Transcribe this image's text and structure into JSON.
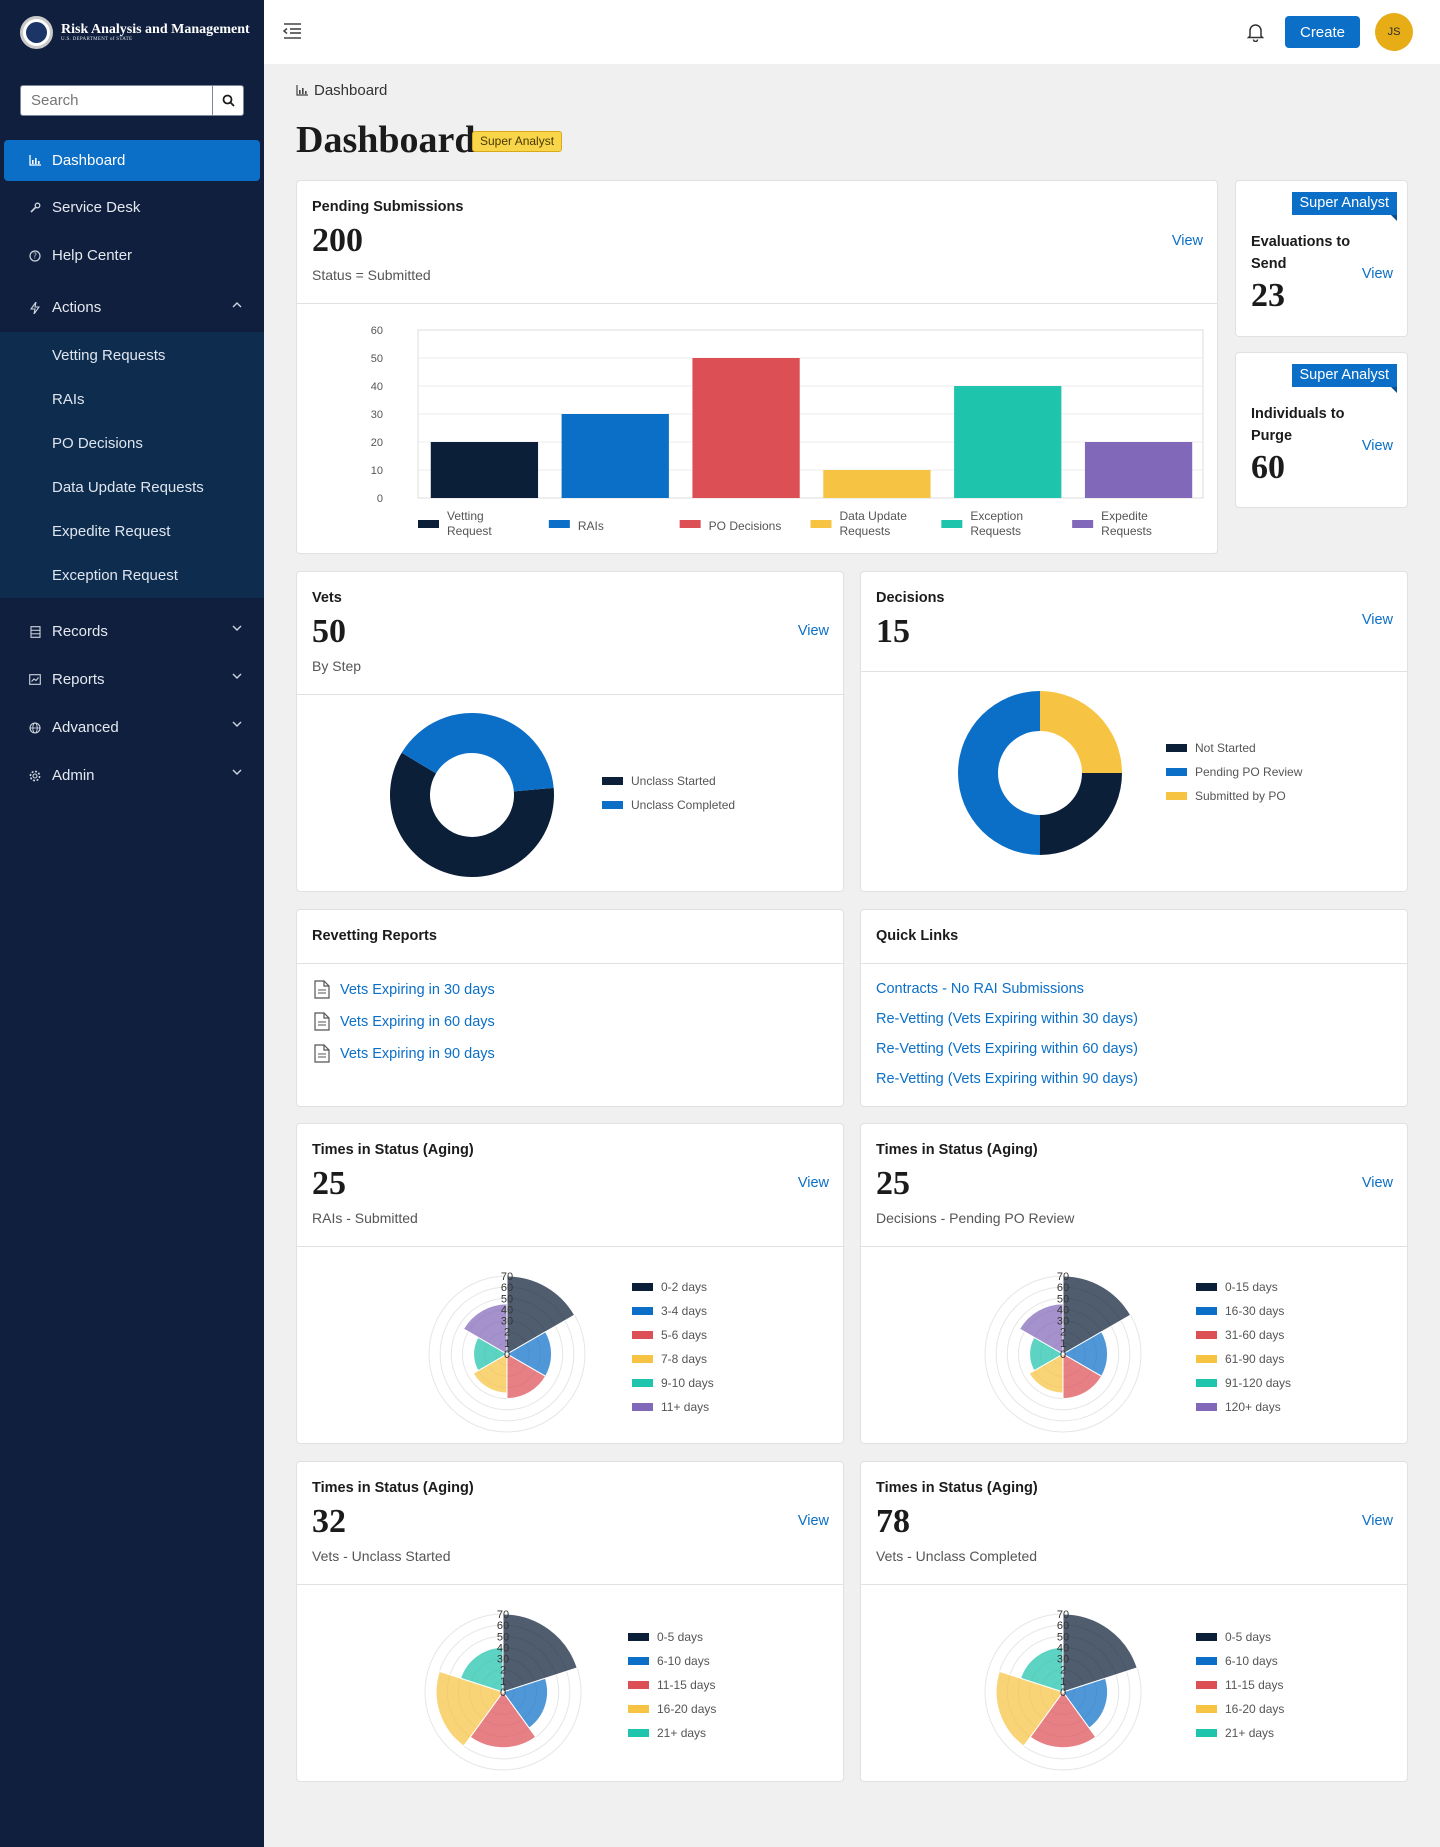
{
  "brand": {
    "title": "Risk Analysis and Management",
    "subtitle": "U.S. DEPARTMENT of STATE"
  },
  "search": {
    "placeholder": "Search"
  },
  "nav": {
    "dashboard": "Dashboard",
    "service_desk": "Service Desk",
    "help_center": "Help Center",
    "actions": "Actions",
    "actions_items": [
      "Vetting Requests",
      "RAIs",
      "PO Decisions",
      "Data Update Requests",
      "Expedite Request",
      "Exception Request"
    ],
    "records": "Records",
    "reports": "Reports",
    "advanced": "Advanced",
    "admin": "Admin"
  },
  "topbar": {
    "create_label": "Create",
    "avatar_initials": "JS"
  },
  "breadcrumb": "Dashboard",
  "page": {
    "title": "Dashboard",
    "badge": "Super Analyst"
  },
  "view_label": "View",
  "pending": {
    "label": "Pending Submissions",
    "value": "200",
    "sub": "Status = Submitted",
    "chart_data": {
      "type": "bar",
      "categories": [
        "Vetting Request",
        "RAIs",
        "PO Decisions",
        "Data Update Requests",
        "Exception Requests",
        "Expedite Requests"
      ],
      "values": [
        20,
        30,
        50,
        10,
        40,
        20
      ],
      "colors": [
        "#0c1f38",
        "#0b6fc7",
        "#dc4f55",
        "#f7c343",
        "#1fc4ac",
        "#8268b8"
      ],
      "ylim": [
        0,
        60
      ],
      "yticks": [
        "60",
        "50",
        "40",
        "30",
        "20",
        "10",
        "0"
      ],
      "grid": true,
      "legend": "bottom"
    }
  },
  "evaluations": {
    "flag": "Super Analyst",
    "label": "Evaluations to Send",
    "value": "23"
  },
  "purge": {
    "flag": "Super Analyst",
    "label": "Individuals to Purge",
    "value": "60"
  },
  "vets": {
    "label": "Vets",
    "value": "50",
    "sub": "By Step",
    "chart_data": {
      "type": "pie",
      "donut": true,
      "labels": [
        "Unclass Started",
        "Unclass Completed"
      ],
      "values": [
        60,
        40
      ],
      "colors": [
        "#0c1f38",
        "#0b6fc7"
      ],
      "legend": "right"
    }
  },
  "decisions": {
    "label": "Decisions",
    "value": "15",
    "chart_data": {
      "type": "pie",
      "donut": true,
      "labels": [
        "Not Started",
        "Pending PO Review",
        "Submitted by PO"
      ],
      "values": [
        25,
        50,
        25
      ],
      "colors": [
        "#0c1f38",
        "#0b6fc7",
        "#f7c343"
      ],
      "legend": "right"
    }
  },
  "revetting": {
    "label": "Revetting Reports",
    "links": [
      "Vets Expiring in 30 days",
      "Vets Expiring in 60 days",
      "Vets Expiring in 90 days"
    ]
  },
  "quick": {
    "label": "Quick Links",
    "links": [
      "Contracts - No RAI Submissions",
      "Re-Vetting (Vets Expiring within 30 days)",
      "Re-Vetting (Vets Expiring within 60 days)",
      "Re-Vetting (Vets Expiring within 90 days)"
    ]
  },
  "aging": [
    {
      "label": "Times in Status (Aging)",
      "value": "25",
      "sub": "RAIs - Submitted",
      "chart_data": {
        "type": "polar-area",
        "rticks": [
          "0",
          "1",
          "2",
          "30",
          "40",
          "50",
          "60",
          "70"
        ],
        "labels": [
          "0-2 days",
          "3-4 days",
          "5-6 days",
          "7-8 days",
          "9-10 days",
          "11+ days"
        ],
        "values": [
          70,
          40,
          40,
          35,
          30,
          45
        ],
        "colors": [
          "#0c1f38",
          "#0b6fc7",
          "#dc4f55",
          "#f7c343",
          "#1fc4ac",
          "#8268b8"
        ],
        "legend": "right"
      }
    },
    {
      "label": "Times in Status (Aging)",
      "value": "25",
      "sub": "Decisions - Pending PO Review",
      "chart_data": {
        "type": "polar-area",
        "rticks": [
          "0",
          "1",
          "2",
          "30",
          "40",
          "50",
          "60",
          "70"
        ],
        "labels": [
          "0-15 days",
          "16-30 days",
          "31-60 days",
          "61-90 days",
          "91-120 days",
          "120+ days"
        ],
        "values": [
          70,
          40,
          40,
          35,
          30,
          45
        ],
        "colors": [
          "#0c1f38",
          "#0b6fc7",
          "#dc4f55",
          "#f7c343",
          "#1fc4ac",
          "#8268b8"
        ],
        "legend": "right"
      }
    },
    {
      "label": "Times in Status (Aging)",
      "value": "32",
      "sub": "Vets - Unclass Started",
      "chart_data": {
        "type": "polar-area",
        "rticks": [
          "0",
          "1",
          "2",
          "30",
          "40",
          "50",
          "60",
          "70"
        ],
        "labels": [
          "0-5 days",
          "6-10 days",
          "11-15 days",
          "16-20 days",
          "21+ days"
        ],
        "values": [
          70,
          40,
          50,
          60,
          40
        ],
        "colors": [
          "#0c1f38",
          "#0b6fc7",
          "#dc4f55",
          "#f7c343",
          "#1fc4ac"
        ],
        "legend": "right"
      }
    },
    {
      "label": "Times in Status (Aging)",
      "value": "78",
      "sub": "Vets - Unclass Completed",
      "chart_data": {
        "type": "polar-area",
        "rticks": [
          "0",
          "1",
          "2",
          "30",
          "40",
          "50",
          "60",
          "70"
        ],
        "labels": [
          "0-5 days",
          "6-10 days",
          "11-15 days",
          "16-20 days",
          "21+ days"
        ],
        "values": [
          70,
          40,
          50,
          60,
          40
        ],
        "colors": [
          "#0c1f38",
          "#0b6fc7",
          "#dc4f55",
          "#f7c343",
          "#1fc4ac"
        ],
        "legend": "right"
      }
    }
  ]
}
